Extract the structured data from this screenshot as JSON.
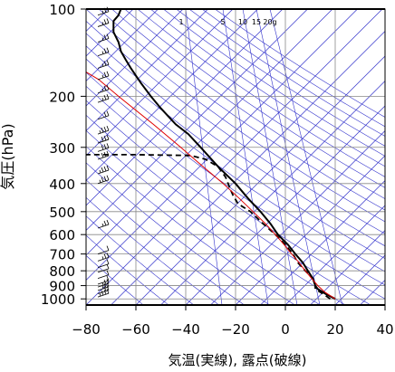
{
  "chart_data": {
    "type": "line",
    "xlabel": "気温(実線), 露点(破線)",
    "ylabel": "気圧(hPa)",
    "xlim": [
      -80,
      40
    ],
    "ylim_hpa": [
      1050,
      100
    ],
    "y_scale": "log-pressure",
    "x_ticks": [
      -80,
      -60,
      -40,
      -20,
      0,
      20,
      40
    ],
    "x_tick_labels": [
      "−80",
      "−60",
      "−40",
      "−20",
      "0",
      "20",
      "40"
    ],
    "y_ticks": [
      100,
      200,
      300,
      400,
      500,
      600,
      700,
      800,
      900,
      1000
    ],
    "y_tick_labels": [
      "100",
      "200",
      "300",
      "400",
      "500",
      "600",
      "700",
      "800",
      "900",
      "1000"
    ],
    "grid": true,
    "mixing_ratio_labels": [
      "1",
      "5",
      "10",
      "15",
      "20g"
    ],
    "colors": {
      "temperature": "#000000",
      "dewpoint": "#000000",
      "parcel": "#e00000",
      "isolines": "#3333cc",
      "grid": "#888888",
      "wind_barbs": "#000000"
    },
    "series": [
      {
        "name": "気温",
        "style": "solid",
        "points": [
          {
            "p": 1000,
            "t": 20
          },
          {
            "p": 960,
            "t": 16
          },
          {
            "p": 925,
            "t": 13
          },
          {
            "p": 900,
            "t": 12
          },
          {
            "p": 850,
            "t": 11
          },
          {
            "p": 800,
            "t": 9
          },
          {
            "p": 750,
            "t": 7
          },
          {
            "p": 700,
            "t": 4
          },
          {
            "p": 650,
            "t": 1
          },
          {
            "p": 600,
            "t": -3
          },
          {
            "p": 550,
            "t": -6
          },
          {
            "p": 500,
            "t": -10
          },
          {
            "p": 450,
            "t": -15
          },
          {
            "p": 400,
            "t": -20
          },
          {
            "p": 350,
            "t": -27
          },
          {
            "p": 300,
            "t": -34
          },
          {
            "p": 270,
            "t": -39
          },
          {
            "p": 250,
            "t": -44
          },
          {
            "p": 220,
            "t": -50
          },
          {
            "p": 200,
            "t": -54
          },
          {
            "p": 180,
            "t": -58
          },
          {
            "p": 160,
            "t": -62
          },
          {
            "p": 150,
            "t": -64
          },
          {
            "p": 140,
            "t": -66
          },
          {
            "p": 130,
            "t": -67
          },
          {
            "p": 120,
            "t": -69
          },
          {
            "p": 110,
            "t": -69
          },
          {
            "p": 105,
            "t": -67
          },
          {
            "p": 100,
            "t": -66
          }
        ]
      },
      {
        "name": "露点",
        "style": "dashed",
        "points": [
          {
            "p": 1000,
            "t": 18
          },
          {
            "p": 960,
            "t": 15
          },
          {
            "p": 925,
            "t": 12
          },
          {
            "p": 900,
            "t": 12
          },
          {
            "p": 850,
            "t": 11
          },
          {
            "p": 800,
            "t": 8
          },
          {
            "p": 750,
            "t": 5
          },
          {
            "p": 700,
            "t": 3
          },
          {
            "p": 650,
            "t": 0
          },
          {
            "p": 600,
            "t": -4
          },
          {
            "p": 550,
            "t": -9
          },
          {
            "p": 500,
            "t": -14
          },
          {
            "p": 470,
            "t": -19
          },
          {
            "p": 440,
            "t": -21
          },
          {
            "p": 420,
            "t": -22
          },
          {
            "p": 380,
            "t": -24
          },
          {
            "p": 350,
            "t": -27
          },
          {
            "p": 330,
            "t": -32
          },
          {
            "p": 320,
            "t": -38
          },
          {
            "p": 318,
            "t": -60
          },
          {
            "p": 318,
            "t": -80
          }
        ]
      },
      {
        "name": "parcel",
        "style": "solid-red",
        "points": [
          {
            "p": 1000,
            "t": 20
          },
          {
            "p": 950,
            "t": 16
          },
          {
            "p": 900,
            "t": 13
          },
          {
            "p": 850,
            "t": 10.5
          },
          {
            "p": 800,
            "t": 8
          },
          {
            "p": 750,
            "t": 5.5
          },
          {
            "p": 700,
            "t": 2.5
          },
          {
            "p": 650,
            "t": -0.5
          },
          {
            "p": 600,
            "t": -4
          },
          {
            "p": 550,
            "t": -8
          },
          {
            "p": 500,
            "t": -13
          },
          {
            "p": 450,
            "t": -18.5
          },
          {
            "p": 400,
            "t": -25
          },
          {
            "p": 350,
            "t": -33
          },
          {
            "p": 300,
            "t": -42
          },
          {
            "p": 250,
            "t": -53
          },
          {
            "p": 200,
            "t": -67
          },
          {
            "p": 175,
            "t": -75
          },
          {
            "p": 165,
            "t": -80
          }
        ]
      }
    ],
    "wind_barbs": [
      {
        "p": 985,
        "speed_kt": 25
      },
      {
        "p": 960,
        "speed_kt": 20
      },
      {
        "p": 935,
        "speed_kt": 15
      },
      {
        "p": 910,
        "speed_kt": 15
      },
      {
        "p": 890,
        "speed_kt": 10
      },
      {
        "p": 850,
        "speed_kt": 10
      },
      {
        "p": 810,
        "speed_kt": 10
      },
      {
        "p": 780,
        "speed_kt": 10
      },
      {
        "p": 740,
        "speed_kt": 15
      },
      {
        "p": 700,
        "speed_kt": 10
      },
      {
        "p": 570,
        "speed_kt": 15
      },
      {
        "p": 400,
        "speed_kt": 25
      },
      {
        "p": 370,
        "speed_kt": 25
      },
      {
        "p": 330,
        "speed_kt": 30
      },
      {
        "p": 310,
        "speed_kt": 30
      },
      {
        "p": 290,
        "speed_kt": 30
      },
      {
        "p": 270,
        "speed_kt": 25
      },
      {
        "p": 240,
        "speed_kt": 20
      },
      {
        "p": 210,
        "speed_kt": 15
      },
      {
        "p": 195,
        "speed_kt": 15
      },
      {
        "p": 175,
        "speed_kt": 15
      },
      {
        "p": 160,
        "speed_kt": 15
      },
      {
        "p": 145,
        "speed_kt": 15
      },
      {
        "p": 130,
        "speed_kt": 15
      },
      {
        "p": 115,
        "speed_kt": 15
      },
      {
        "p": 105,
        "speed_kt": 15
      }
    ]
  }
}
